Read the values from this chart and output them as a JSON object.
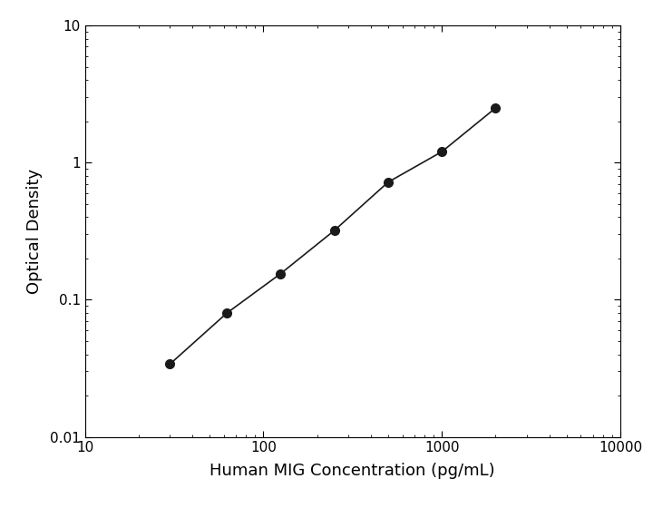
{
  "x_data": [
    30,
    62.5,
    125,
    250,
    500,
    1000,
    2000
  ],
  "y_data": [
    0.034,
    0.08,
    0.155,
    0.32,
    0.72,
    1.2,
    2.5
  ],
  "xlabel": "Human MIG Concentration (pg/mL)",
  "ylabel": "Optical Density",
  "xlim": [
    10,
    10000
  ],
  "ylim": [
    0.01,
    10
  ],
  "line_color": "#1a1a1a",
  "marker_color": "#1a1a1a",
  "marker_size": 7,
  "linewidth": 1.2,
  "background_color": "#ffffff",
  "xlabel_fontsize": 13,
  "ylabel_fontsize": 13,
  "tick_fontsize": 11,
  "xlabel_fontweight": "normal",
  "ylabel_fontweight": "normal"
}
